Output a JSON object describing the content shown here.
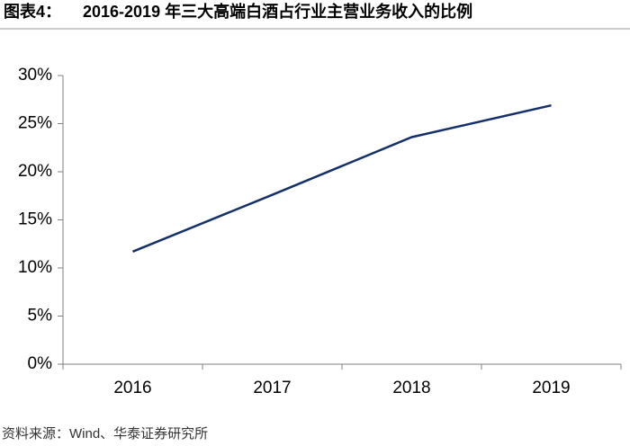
{
  "chart_data": {
    "type": "line",
    "figure_label": "图表4：",
    "title": "2016-2019 年三大高端白酒占行业主营业务收入的比例",
    "source": "资料来源：Wind、华泰证券研究所",
    "categories": [
      "2016",
      "2017",
      "2018",
      "2019"
    ],
    "series": [
      {
        "color": "#14306b",
        "values": [
          11.7,
          17.6,
          23.6,
          26.9
        ]
      }
    ],
    "ylim": [
      0,
      30
    ],
    "yticks": [
      {
        "value": 0,
        "label": "0%"
      },
      {
        "value": 5,
        "label": "5%"
      },
      {
        "value": 10,
        "label": "10%"
      },
      {
        "value": 15,
        "label": "15%"
      },
      {
        "value": 20,
        "label": "20%"
      },
      {
        "value": 25,
        "label": "25%"
      },
      {
        "value": 30,
        "label": "30%"
      }
    ],
    "grid": false
  }
}
